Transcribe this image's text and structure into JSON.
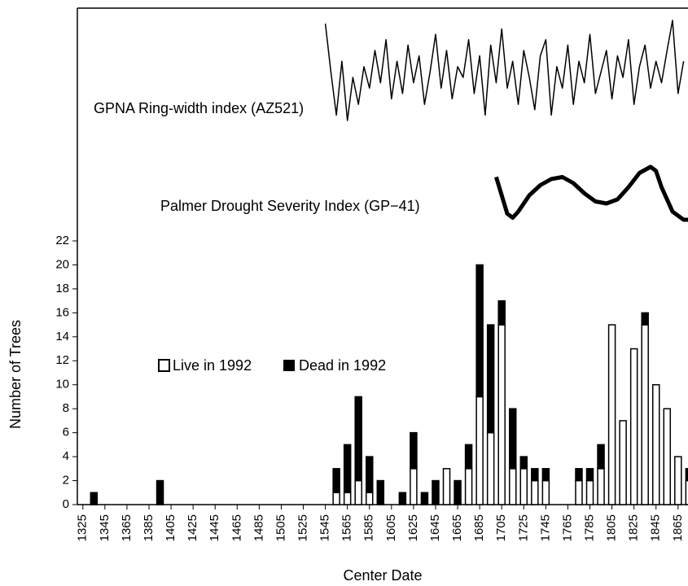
{
  "chart_data": {
    "type": "bar",
    "x": [
      1335,
      1395,
      1555,
      1565,
      1575,
      1585,
      1595,
      1615,
      1625,
      1635,
      1645,
      1655,
      1665,
      1675,
      1685,
      1695,
      1705,
      1715,
      1725,
      1735,
      1745,
      1775,
      1785,
      1795,
      1805,
      1815,
      1825,
      1835,
      1845,
      1855,
      1865,
      1875
    ],
    "series": [
      {
        "name": "Live in 1992",
        "color": "#ffffff",
        "values": [
          0,
          0,
          1,
          1,
          2,
          1,
          0,
          0,
          3,
          0,
          0,
          3,
          0,
          3,
          9,
          6,
          15,
          3,
          3,
          2,
          2,
          2,
          2,
          3,
          15,
          7,
          13,
          15,
          10,
          8,
          4,
          2
        ]
      },
      {
        "name": "Dead in 1992",
        "color": "#000000",
        "values": [
          1,
          2,
          2,
          4,
          7,
          3,
          2,
          1,
          3,
          1,
          2,
          0,
          2,
          2,
          11,
          9,
          2,
          5,
          1,
          1,
          1,
          1,
          1,
          2,
          0,
          0,
          0,
          1,
          0,
          0,
          0,
          1
        ]
      }
    ],
    "xlim": [
      1320,
      1874
    ],
    "xticks": [
      1325,
      1345,
      1365,
      1385,
      1405,
      1425,
      1445,
      1465,
      1485,
      1505,
      1525,
      1545,
      1565,
      1585,
      1605,
      1625,
      1645,
      1665,
      1685,
      1705,
      1725,
      1745,
      1765,
      1785,
      1805,
      1825,
      1845,
      1865
    ],
    "ylim": [
      0,
      22
    ],
    "yticks": [
      0,
      2,
      4,
      6,
      8,
      10,
      12,
      14,
      16,
      18,
      20,
      22
    ],
    "xlabel": "Center Date",
    "ylabel": "Number of Trees",
    "lines": [
      {
        "name": "GPNA Ring-width index (AZ521)",
        "color": "#000000",
        "x": [
          1545,
          1550,
          1555,
          1560,
          1565,
          1570,
          1575,
          1580,
          1585,
          1590,
          1595,
          1600,
          1605,
          1610,
          1615,
          1620,
          1625,
          1630,
          1635,
          1640,
          1645,
          1650,
          1655,
          1660,
          1665,
          1670,
          1675,
          1680,
          1685,
          1690,
          1695,
          1700,
          1705,
          1710,
          1715,
          1720,
          1725,
          1730,
          1735,
          1740,
          1745,
          1750,
          1755,
          1760,
          1765,
          1770,
          1775,
          1780,
          1785,
          1790,
          1795,
          1800,
          1805,
          1810,
          1815,
          1820,
          1825,
          1830,
          1835,
          1840,
          1845,
          1850,
          1855,
          1860,
          1865,
          1870
        ],
        "values": [
          1.45,
          1.0,
          0.6,
          1.1,
          0.55,
          0.95,
          0.7,
          1.05,
          0.85,
          1.2,
          0.9,
          1.3,
          0.75,
          1.1,
          0.8,
          1.25,
          0.9,
          1.15,
          0.7,
          1.0,
          1.35,
          0.85,
          1.2,
          0.75,
          1.05,
          0.95,
          1.3,
          0.8,
          1.15,
          0.6,
          1.25,
          0.9,
          1.4,
          0.85,
          1.1,
          0.7,
          1.2,
          0.95,
          0.65,
          1.15,
          1.3,
          0.6,
          1.05,
          0.85,
          1.25,
          0.7,
          1.1,
          0.9,
          1.35,
          0.8,
          1.0,
          1.2,
          0.75,
          1.15,
          0.95,
          1.3,
          0.7,
          1.05,
          1.25,
          0.85,
          1.1,
          0.9,
          1.2,
          1.48,
          0.8,
          1.1
        ]
      },
      {
        "name": "Palmer Drought Severity Index (GP−41)",
        "color": "#000000",
        "x": [
          1700,
          1710,
          1715,
          1720,
          1730,
          1740,
          1750,
          1760,
          1770,
          1780,
          1790,
          1800,
          1810,
          1820,
          1830,
          1840,
          1845,
          1850,
          1860,
          1870,
          1874
        ],
        "values": [
          1.0,
          -0.8,
          -1.0,
          -0.7,
          0.1,
          0.6,
          0.9,
          1.0,
          0.7,
          0.2,
          -0.2,
          -0.3,
          -0.1,
          0.5,
          1.2,
          1.5,
          1.3,
          0.5,
          -0.7,
          -1.1,
          -1.1
        ]
      }
    ]
  }
}
